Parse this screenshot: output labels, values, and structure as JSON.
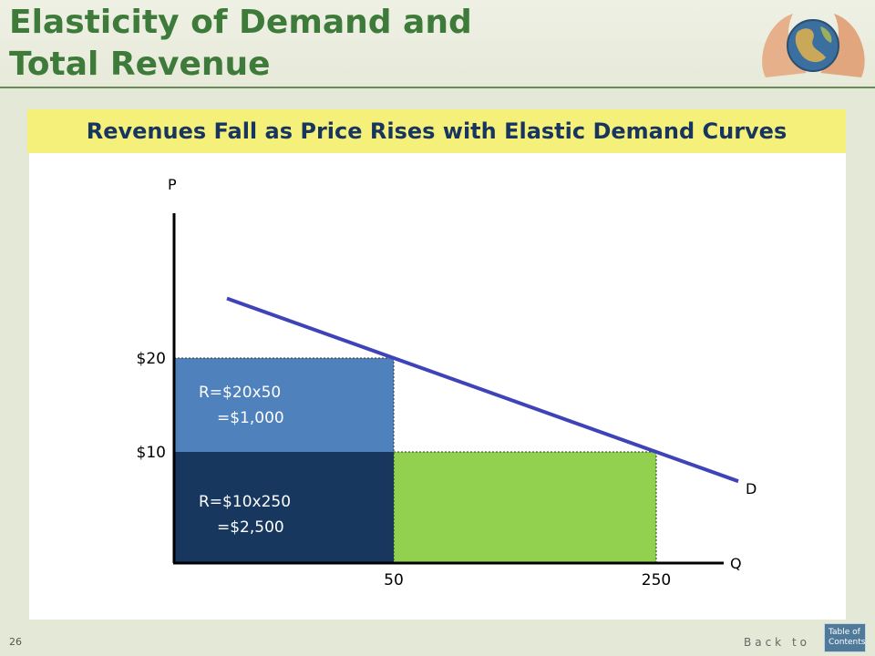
{
  "slide": {
    "title_line1": "Elasticity of Demand and",
    "title_line2": "Total Revenue",
    "subtitle": "Revenues Fall as Price Rises with Elastic Demand Curves",
    "page_number": "26",
    "back_link": "Back to",
    "toc_line1": "Table of",
    "toc_line2": "Contents",
    "logo_icon": "hands-holding-globe-icon"
  },
  "chart_data": {
    "type": "area",
    "y_axis_label": "P",
    "x_axis_label": "Q",
    "curve_label": "D",
    "y_ticks": [
      "$20",
      "$10"
    ],
    "x_ticks": [
      "50",
      "250"
    ],
    "points": [
      {
        "price": 20,
        "quantity": 50
      },
      {
        "price": 10,
        "quantity": 250
      }
    ],
    "rectangles": [
      {
        "name": "revenue-at-20",
        "price": 20,
        "quantity": 50,
        "label_line1": "R=$20x50",
        "label_line2": "=$1,000",
        "color": "#4f81bd"
      },
      {
        "name": "revenue-at-10-shared",
        "price": 10,
        "quantity": 50,
        "label_line1": "R=$10x250",
        "label_line2": "=$2,500",
        "color": "#17375e"
      },
      {
        "name": "revenue-at-10-extra",
        "price": 10,
        "quantity": 250,
        "color": "#92d050"
      }
    ],
    "curve_color": "#3f43b8",
    "axis_color": "#000000"
  }
}
